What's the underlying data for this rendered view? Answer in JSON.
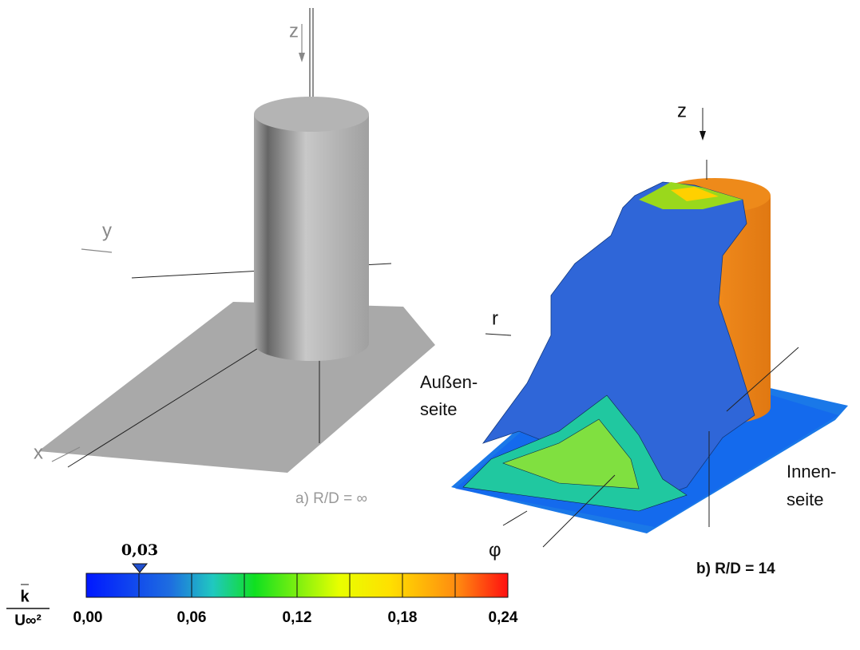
{
  "panel_a": {
    "axis_labels": {
      "z": "z",
      "y": "y",
      "x": "x"
    },
    "caption": "a) R/D = ∞"
  },
  "panel_b": {
    "axis_labels": {
      "z": "z",
      "r": "r",
      "phi": "φ"
    },
    "outer_side": [
      "Außen-",
      "seite"
    ],
    "inner_side": [
      "Innen-",
      "seite"
    ],
    "caption": "b) R/D = 14"
  },
  "colorbar": {
    "quantity_numerator": "k",
    "quantity_denominator": "U∞²",
    "marker": "0,03",
    "tick_labels": [
      "0,00",
      "0,06",
      "0,12",
      "0,18",
      "0,24"
    ]
  }
}
